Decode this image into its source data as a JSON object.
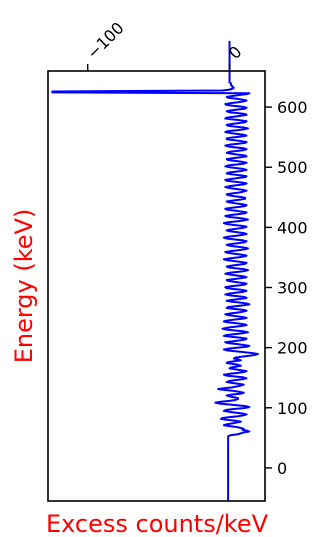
{
  "chart_data": {
    "type": "line",
    "orientation": "vertical",
    "xlabel": "Excess counts/keV",
    "ylabel": "Energy (keV)",
    "label_color": "#ff0000",
    "line_color": "#0000ff",
    "xlim": [
      -128,
      25
    ],
    "ylim": [
      -55,
      660
    ],
    "x_ticks": [
      -100,
      0
    ],
    "x_tick_labels": [
      "−100",
      "0"
    ],
    "x_ticks_position": "top",
    "y_ticks": [
      0,
      100,
      200,
      300,
      400,
      500,
      600
    ],
    "y_tick_labels": [
      "0",
      "100",
      "200",
      "300",
      "400",
      "500",
      "600"
    ],
    "y_ticks_position": "right",
    "grid": false,
    "series": [
      {
        "counts": [
          -1,
          -1,
          -1,
          -1,
          -1,
          -1,
          -1,
          -1,
          -1,
          -1,
          -1,
          -1,
          -1,
          -1,
          -1,
          -1,
          -1,
          -1,
          -1,
          -1,
          -1,
          -1,
          -1,
          -1,
          -1,
          -1,
          -1,
          -1,
          -1,
          -1,
          -1,
          -1,
          -1,
          -1,
          -1,
          -1,
          -1,
          -1,
          -1,
          -1,
          -1,
          -1,
          -1,
          -1,
          -1,
          -1,
          -1,
          -1,
          -1,
          -1,
          -1,
          -1,
          -1,
          -1,
          -1,
          -1,
          -1,
          -1,
          -1,
          -1,
          -1,
          -1,
          -1,
          -1,
          -1,
          -1,
          -1,
          -1,
          -1,
          -1,
          -1,
          -1,
          -1,
          1,
          6,
          8,
          10,
          14,
          12,
          9,
          10,
          8,
          5,
          0,
          -4,
          -2,
          2,
          5,
          8,
          4,
          -2,
          -6,
          -5,
          0,
          6,
          10,
          12,
          9,
          4,
          -1,
          -4,
          -2,
          3,
          10,
          14,
          12,
          6,
          0,
          -7,
          -10,
          -6,
          0,
          4,
          6,
          6,
          3,
          0,
          -2,
          2,
          8,
          10,
          7,
          3,
          -3,
          -8,
          -4,
          2,
          5,
          8,
          10,
          6,
          1,
          -2,
          0,
          4,
          9,
          12,
          10,
          4,
          -2,
          -4,
          0,
          6,
          10,
          12,
          8,
          4,
          0,
          1,
          5,
          8,
          6,
          2,
          -2,
          -1,
          4,
          8,
          6,
          3,
          4,
          9,
          14,
          18,
          20,
          16,
          10,
          4,
          -2,
          -4,
          0,
          6,
          12,
          14,
          10,
          5,
          -1,
          -3,
          2,
          7,
          11,
          12,
          8,
          2,
          -4,
          -2,
          4,
          9,
          13,
          10,
          4,
          -2,
          -5,
          -2,
          3,
          8,
          12,
          10,
          5,
          -1,
          -4,
          -2,
          3,
          9,
          12,
          9,
          4,
          -1,
          -3,
          1,
          6,
          10,
          12,
          9,
          3,
          -2,
          -1,
          5,
          10,
          14,
          12,
          7,
          1,
          -2,
          2,
          8,
          12,
          11,
          6,
          0,
          -3,
          0,
          5,
          10,
          12,
          9,
          3,
          -2,
          -3,
          1,
          7,
          11,
          12,
          8,
          3,
          -1,
          -2,
          3,
          8,
          12,
          10,
          5,
          0,
          -3,
          0,
          6,
          11,
          13,
          10,
          4,
          -1,
          -2,
          2,
          7,
          11,
          12,
          8,
          3,
          -2,
          -4,
          0,
          6,
          10,
          12,
          9,
          4,
          -1,
          -3,
          1,
          6,
          11,
          13,
          10,
          5,
          0,
          -2,
          2,
          7,
          11,
          12,
          9,
          3,
          -2,
          -4,
          -1,
          5,
          9,
          12,
          10,
          5,
          0,
          -2,
          1,
          6,
          10,
          12,
          9,
          3,
          -2,
          -4,
          -1,
          5,
          10,
          13,
          10,
          5,
          -1,
          -3,
          1,
          6,
          11,
          12,
          8,
          3,
          -2,
          -3,
          1,
          7,
          11,
          12,
          9,
          4,
          0,
          -2,
          2,
          7,
          11,
          11,
          8,
          3,
          -1,
          -2,
          2,
          7,
          10,
          12,
          9,
          4,
          0,
          -3,
          0,
          5,
          10,
          12,
          9,
          3,
          -2,
          -3,
          1,
          6,
          11,
          12,
          8,
          2,
          -2,
          -1,
          4,
          9,
          12,
          10,
          5,
          0,
          -3,
          -1,
          5,
          10,
          12,
          9,
          4,
          -1,
          -2,
          2,
          8,
          12,
          11,
          6,
          1,
          -2,
          0,
          5,
          10,
          12,
          10,
          4,
          -1,
          -3,
          0,
          6,
          11,
          12,
          8,
          3,
          -2,
          -2,
          2,
          8,
          12,
          10,
          5,
          0,
          -3,
          -1,
          5,
          10,
          13,
          10,
          4,
          -1,
          -2,
          2,
          7,
          11,
          12,
          8,
          2,
          -3,
          -2,
          3,
          8,
          12,
          11,
          6,
          0,
          -2,
          1,
          6,
          11,
          12,
          9,
          3,
          -2,
          -3,
          1,
          6,
          10,
          12,
          9,
          4,
          -1,
          -2,
          2,
          7,
          12,
          14,
          -125,
          -125,
          -5,
          0,
          2,
          3,
          2,
          2,
          1,
          1,
          1,
          0,
          0,
          0,
          0,
          0,
          0,
          0,
          0,
          0,
          0,
          0,
          0,
          0,
          0,
          0,
          0,
          0,
          0,
          0,
          0,
          0,
          0,
          0,
          0,
          0,
          0,
          0,
          0,
          0,
          0,
          0,
          0,
          0,
          0,
          0,
          0,
          0,
          0,
          0,
          0,
          0,
          0,
          0,
          0,
          0,
          0,
          0
        ],
        "energy_start": -55,
        "energy_step": 1.5
      }
    ]
  }
}
